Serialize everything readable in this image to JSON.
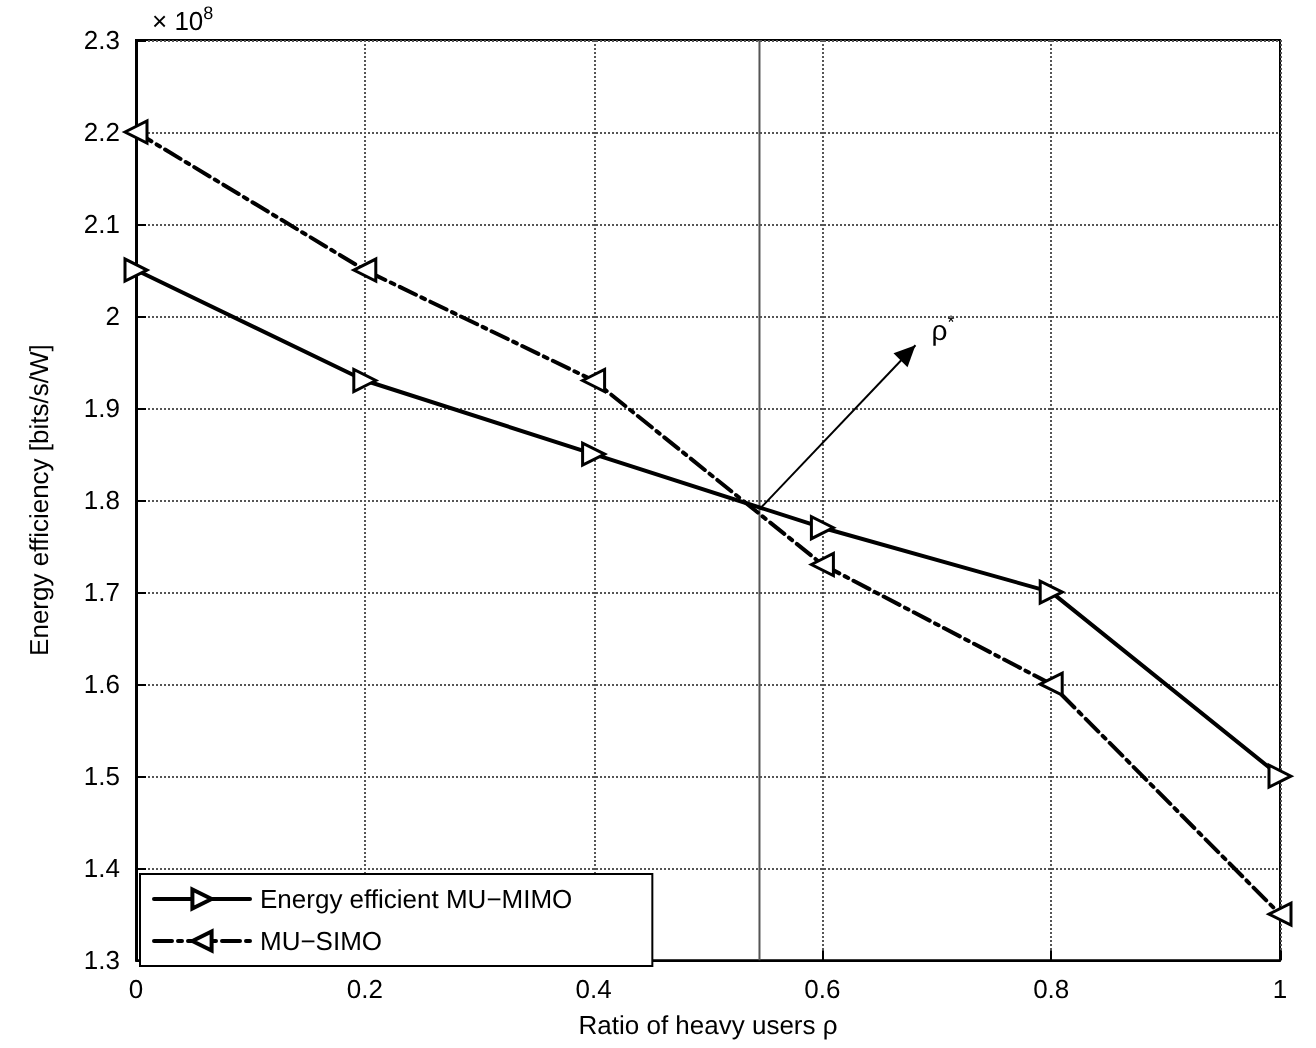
{
  "chart_data": {
    "type": "line",
    "xlabel": "Ratio of heavy users ρ",
    "ylabel": "Energy efficiency [bits/s/W]",
    "x": [
      0,
      0.2,
      0.4,
      0.6,
      0.8,
      1
    ],
    "series": [
      {
        "name": "Energy efficient MU−MIMO",
        "color": "#000000",
        "line_style": "solid",
        "values": [
          2.05,
          1.93,
          1.85,
          1.77,
          1.7,
          1.5
        ]
      },
      {
        "name": "MU−SIMO",
        "color": "#000000",
        "line_style": "dashed",
        "values": [
          2.2,
          2.05,
          1.93,
          1.73,
          1.6,
          1.35
        ]
      }
    ],
    "xlim": [
      0,
      1
    ],
    "xticks": [
      0,
      0.2,
      0.4,
      0.6,
      0.8,
      1
    ],
    "ylim": [
      1.3,
      2.3
    ],
    "yticks": [
      1.3,
      1.4,
      1.5,
      1.6,
      1.7,
      1.8,
      1.9,
      2,
      2.1,
      2.2,
      2.3
    ],
    "ref_lines": [
      {
        "axis": "x",
        "value": 0.545,
        "color": "#555555",
        "line_style": "solid"
      }
    ],
    "annotations": [
      "× 10$^{8}$",
      {
        "text": "ρ$^{*}$",
        "x": 0.545,
        "y": 1.79
      }
    ],
    "grid": true,
    "legend": "bottom left",
    "marker": "triangle"
  }
}
